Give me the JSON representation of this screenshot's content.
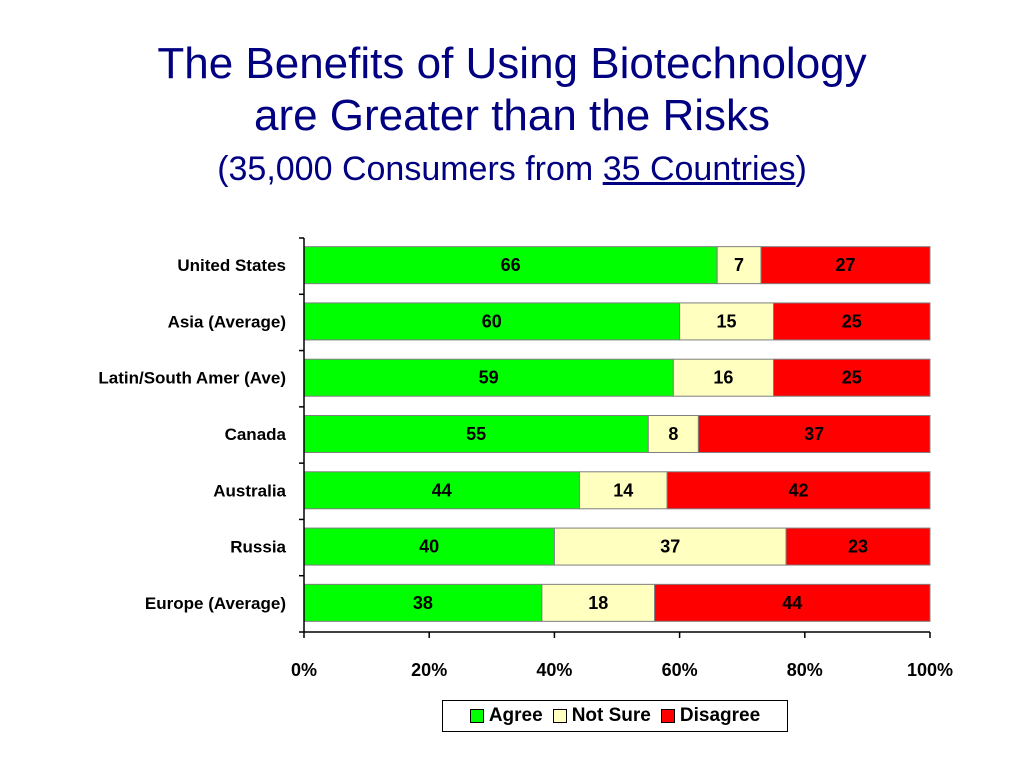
{
  "title": {
    "line1": "The Benefits of Using Biotechnology",
    "line2": "are Greater than the Risks",
    "subtitle_prefix": "(35,000 Consumers from ",
    "subtitle_link": "35 Countries",
    "subtitle_suffix": ")"
  },
  "chart_data": {
    "type": "bar",
    "orientation": "horizontal",
    "stacked": true,
    "title": "The Benefits of Using Biotechnology are Greater than the Risks",
    "subtitle": "(35,000 Consumers from 35 Countries)",
    "categories": [
      "United States",
      "Asia (Average)",
      "Latin/South Amer (Ave)",
      "Canada",
      "Australia",
      "Russia",
      "Europe (Average)"
    ],
    "series": [
      {
        "name": "Agree",
        "color": "#00ff00",
        "values": [
          66,
          60,
          59,
          55,
          44,
          40,
          38
        ]
      },
      {
        "name": "Not Sure",
        "color": "#ffffc0",
        "values": [
          7,
          15,
          16,
          8,
          14,
          37,
          18
        ]
      },
      {
        "name": "Disagree",
        "color": "#ff0000",
        "values": [
          27,
          25,
          25,
          37,
          42,
          23,
          44
        ]
      }
    ],
    "x_ticks": [
      "0%",
      "20%",
      "40%",
      "60%",
      "80%",
      "100%"
    ],
    "xlim": [
      0,
      100
    ],
    "legend": "bottom-center",
    "grid": false
  }
}
